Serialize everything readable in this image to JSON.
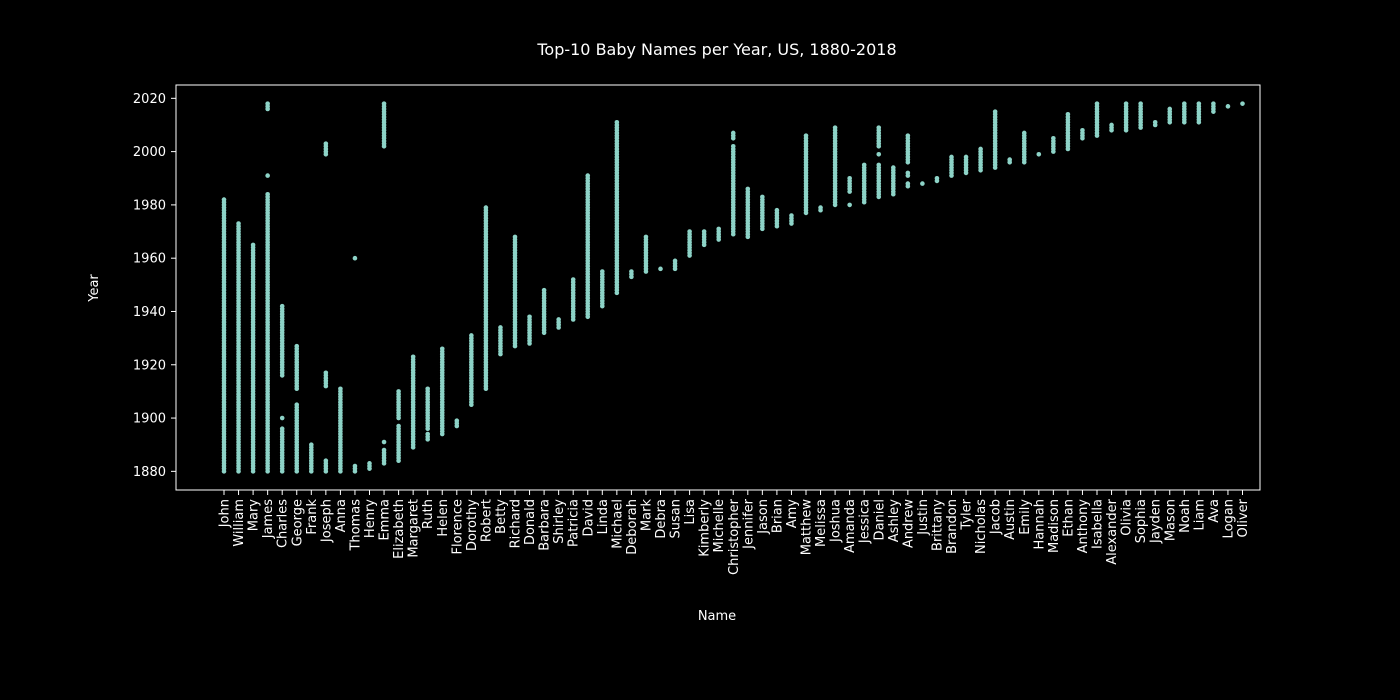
{
  "chart_data": {
    "type": "scatter",
    "title": "Top-10 Baby Names per Year, US, 1880-2018",
    "xlabel": "Name",
    "ylabel": "Year",
    "ylim": [
      1873,
      2025
    ],
    "yticks": [
      1880,
      1900,
      1920,
      1940,
      1960,
      1980,
      2000,
      2020
    ],
    "grid": false,
    "legend": "none",
    "colors": {
      "background": "#000000",
      "marker": "#8dd3c7",
      "axis": "#ffffff",
      "text": "#ffffff"
    },
    "categories": [
      "John",
      "William",
      "Mary",
      "James",
      "Charles",
      "George",
      "Frank",
      "Joseph",
      "Anna",
      "Thomas",
      "Henry",
      "Emma",
      "Elizabeth",
      "Margaret",
      "Ruth",
      "Helen",
      "Florence",
      "Dorothy",
      "Robert",
      "Betty",
      "Richard",
      "Donald",
      "Barbara",
      "Shirley",
      "Patricia",
      "David",
      "Linda",
      "Michael",
      "Deborah",
      "Mark",
      "Debra",
      "Susan",
      "Lisa",
      "Kimberly",
      "Michelle",
      "Christopher",
      "Jennifer",
      "Jason",
      "Brian",
      "Amy",
      "Matthew",
      "Melissa",
      "Joshua",
      "Amanda",
      "Jessica",
      "Daniel",
      "Ashley",
      "Andrew",
      "Justin",
      "Brittany",
      "Brandon",
      "Tyler",
      "Nicholas",
      "Jacob",
      "Austin",
      "Emily",
      "Hannah",
      "Madison",
      "Ethan",
      "Anthony",
      "Isabella",
      "Alexander",
      "Olivia",
      "Sophia",
      "Jayden",
      "Mason",
      "Noah",
      "Liam",
      "Ava",
      "Logan",
      "Oliver"
    ],
    "year_ranges": [
      [
        [
          1880,
          1982
        ]
      ],
      [
        [
          1880,
          1973
        ]
      ],
      [
        [
          1880,
          1965
        ]
      ],
      [
        [
          1880,
          1984
        ],
        [
          1991,
          1991
        ],
        [
          2016,
          2018
        ]
      ],
      [
        [
          1880,
          1896
        ],
        [
          1900,
          1900
        ],
        [
          1916,
          1942
        ]
      ],
      [
        [
          1880,
          1905
        ],
        [
          1911,
          1927
        ]
      ],
      [
        [
          1880,
          1890
        ]
      ],
      [
        [
          1880,
          1884
        ],
        [
          1912,
          1917
        ],
        [
          1999,
          2003
        ]
      ],
      [
        [
          1880,
          1911
        ]
      ],
      [
        [
          1880,
          1882
        ],
        [
          1960,
          1960
        ]
      ],
      [
        [
          1881,
          1883
        ]
      ],
      [
        [
          1883,
          1888
        ],
        [
          1891,
          1891
        ],
        [
          2002,
          2018
        ]
      ],
      [
        [
          1884,
          1897
        ],
        [
          1900,
          1910
        ]
      ],
      [
        [
          1889,
          1923
        ]
      ],
      [
        [
          1892,
          1894
        ],
        [
          1896,
          1911
        ]
      ],
      [
        [
          1894,
          1926
        ]
      ],
      [
        [
          1897,
          1899
        ]
      ],
      [
        [
          1905,
          1931
        ]
      ],
      [
        [
          1911,
          1979
        ]
      ],
      [
        [
          1924,
          1934
        ]
      ],
      [
        [
          1927,
          1968
        ]
      ],
      [
        [
          1928,
          1938
        ]
      ],
      [
        [
          1932,
          1948
        ]
      ],
      [
        [
          1934,
          1937
        ]
      ],
      [
        [
          1937,
          1952
        ]
      ],
      [
        [
          1938,
          1991
        ]
      ],
      [
        [
          1942,
          1955
        ]
      ],
      [
        [
          1947,
          2011
        ]
      ],
      [
        [
          1953,
          1955
        ]
      ],
      [
        [
          1955,
          1968
        ]
      ],
      [
        [
          1956,
          1956
        ]
      ],
      [
        [
          1956,
          1959
        ]
      ],
      [
        [
          1961,
          1970
        ]
      ],
      [
        [
          1965,
          1970
        ]
      ],
      [
        [
          1967,
          1971
        ]
      ],
      [
        [
          1969,
          2002
        ],
        [
          2005,
          2007
        ]
      ],
      [
        [
          1968,
          1986
        ]
      ],
      [
        [
          1971,
          1983
        ]
      ],
      [
        [
          1972,
          1978
        ]
      ],
      [
        [
          1973,
          1976
        ]
      ],
      [
        [
          1977,
          2006
        ]
      ],
      [
        [
          1978,
          1979
        ]
      ],
      [
        [
          1980,
          2009
        ]
      ],
      [
        [
          1980,
          1980
        ],
        [
          1985,
          1990
        ]
      ],
      [
        [
          1981,
          1995
        ]
      ],
      [
        [
          1983,
          1995
        ],
        [
          1999,
          1999
        ],
        [
          2002,
          2009
        ]
      ],
      [
        [
          1984,
          1994
        ]
      ],
      [
        [
          1987,
          1988
        ],
        [
          1991,
          1992
        ],
        [
          1996,
          2006
        ]
      ],
      [
        [
          1988,
          1988
        ]
      ],
      [
        [
          1989,
          1990
        ]
      ],
      [
        [
          1991,
          1998
        ]
      ],
      [
        [
          1992,
          1998
        ]
      ],
      [
        [
          1993,
          2001
        ]
      ],
      [
        [
          1994,
          2015
        ]
      ],
      [
        [
          1996,
          1997
        ]
      ],
      [
        [
          1996,
          2007
        ]
      ],
      [
        [
          1999,
          1999
        ]
      ],
      [
        [
          2000,
          2005
        ]
      ],
      [
        [
          2001,
          2014
        ]
      ],
      [
        [
          2005,
          2008
        ]
      ],
      [
        [
          2006,
          2018
        ]
      ],
      [
        [
          2008,
          2010
        ]
      ],
      [
        [
          2008,
          2018
        ]
      ],
      [
        [
          2009,
          2018
        ]
      ],
      [
        [
          2010,
          2011
        ]
      ],
      [
        [
          2011,
          2016
        ]
      ],
      [
        [
          2011,
          2018
        ]
      ],
      [
        [
          2011,
          2018
        ]
      ],
      [
        [
          2015,
          2018
        ]
      ],
      [
        [
          2017,
          2017
        ]
      ],
      [
        [
          2018,
          2018
        ]
      ]
    ]
  }
}
